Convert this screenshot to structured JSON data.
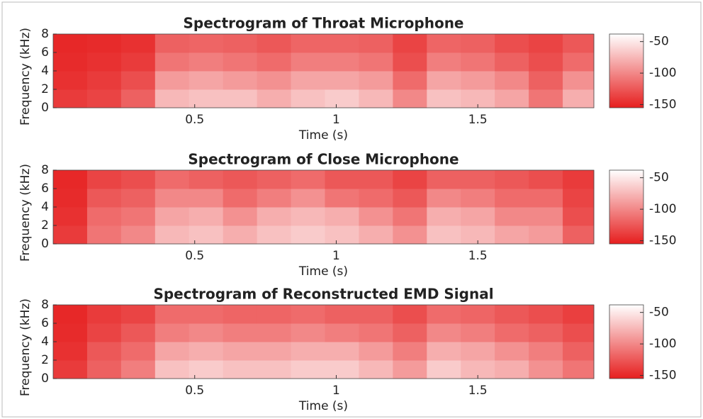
{
  "chart_data": [
    {
      "type": "heatmap",
      "title": "Spectrogram of Throat Microphone",
      "xlabel": "Time (s)",
      "ylabel": "Frequency (kHz)",
      "xlim": [
        0,
        1.91
      ],
      "ylim": [
        0,
        8
      ],
      "xticks": [
        0.5,
        1,
        1.5
      ],
      "yticks": [
        0,
        2,
        4,
        6,
        8
      ],
      "x_edges": [
        0,
        0.12,
        0.24,
        0.36,
        0.48,
        0.6,
        0.72,
        0.84,
        0.96,
        1.08,
        1.2,
        1.32,
        1.44,
        1.56,
        1.68,
        1.8,
        1.91
      ],
      "y_edges": [
        0,
        2,
        4,
        6,
        8
      ],
      "z": [
        [
          -140,
          -135,
          -120,
          -75,
          -70,
          -70,
          -80,
          -70,
          -65,
          -75,
          -100,
          -70,
          -75,
          -85,
          -110,
          -80
        ],
        [
          -145,
          -140,
          -130,
          -90,
          -85,
          -90,
          -95,
          -85,
          -85,
          -90,
          -115,
          -85,
          -90,
          -100,
          -120,
          -95
        ],
        [
          -148,
          -145,
          -140,
          -110,
          -105,
          -110,
          -115,
          -105,
          -105,
          -110,
          -130,
          -105,
          -110,
          -120,
          -130,
          -115
        ],
        [
          -150,
          -148,
          -145,
          -120,
          -118,
          -120,
          -125,
          -118,
          -118,
          -120,
          -135,
          -118,
          -120,
          -130,
          -135,
          -125
        ]
      ],
      "clim": [
        -155,
        -38
      ],
      "cticks": [
        -50,
        -100,
        -150
      ],
      "colormap": [
        "#e61e1e",
        "#ffffff"
      ]
    },
    {
      "type": "heatmap",
      "title": "Spectrogram of Close Microphone",
      "xlabel": "Time (s)",
      "ylabel": "Frequency (kHz)",
      "xlim": [
        0,
        1.91
      ],
      "ylim": [
        0,
        8
      ],
      "xticks": [
        0.5,
        1,
        1.5
      ],
      "yticks": [
        0,
        2,
        4,
        6,
        8
      ],
      "x_edges": [
        0,
        0.12,
        0.24,
        0.36,
        0.48,
        0.6,
        0.72,
        0.84,
        0.96,
        1.08,
        1.2,
        1.32,
        1.44,
        1.56,
        1.68,
        1.8,
        1.91
      ],
      "y_edges": [
        0,
        2,
        4,
        6,
        8
      ],
      "z": [
        [
          -140,
          -110,
          -100,
          -75,
          -70,
          -80,
          -70,
          -65,
          -70,
          -80,
          -95,
          -70,
          -75,
          -85,
          -90,
          -120
        ],
        [
          -145,
          -115,
          -110,
          -85,
          -80,
          -95,
          -80,
          -75,
          -80,
          -95,
          -110,
          -80,
          -85,
          -100,
          -100,
          -130
        ],
        [
          -148,
          -125,
          -120,
          -100,
          -100,
          -115,
          -105,
          -95,
          -110,
          -115,
          -125,
          -100,
          -105,
          -115,
          -115,
          -135
        ],
        [
          -150,
          -135,
          -130,
          -115,
          -120,
          -125,
          -120,
          -115,
          -125,
          -125,
          -135,
          -120,
          -120,
          -125,
          -130,
          -140
        ]
      ],
      "clim": [
        -155,
        -38
      ],
      "cticks": [
        -50,
        -100,
        -150
      ],
      "colormap": [
        "#e61e1e",
        "#ffffff"
      ]
    },
    {
      "type": "heatmap",
      "title": "Spectrogram of Reconstructed EMD Signal",
      "xlabel": "Time (s)",
      "ylabel": "Frequency (kHz)",
      "xlim": [
        0,
        1.91
      ],
      "ylim": [
        0,
        8
      ],
      "xticks": [
        0.5,
        1,
        1.5
      ],
      "yticks": [
        0,
        2,
        4,
        6,
        8
      ],
      "x_edges": [
        0,
        0.12,
        0.24,
        0.36,
        0.48,
        0.6,
        0.72,
        0.84,
        0.96,
        1.08,
        1.2,
        1.32,
        1.44,
        1.56,
        1.68,
        1.8,
        1.91
      ],
      "y_edges": [
        0,
        2,
        4,
        6,
        8
      ],
      "z": [
        [
          -140,
          -120,
          -105,
          -70,
          -65,
          -70,
          -70,
          -65,
          -65,
          -75,
          -90,
          -65,
          -75,
          -80,
          -95,
          -110
        ],
        [
          -145,
          -125,
          -115,
          -85,
          -80,
          -85,
          -85,
          -80,
          -80,
          -90,
          -105,
          -80,
          -85,
          -95,
          -105,
          -120
        ],
        [
          -148,
          -135,
          -125,
          -105,
          -100,
          -105,
          -105,
          -100,
          -105,
          -110,
          -120,
          -100,
          -105,
          -115,
          -120,
          -130
        ],
        [
          -150,
          -140,
          -135,
          -115,
          -115,
          -118,
          -118,
          -115,
          -120,
          -120,
          -130,
          -115,
          -118,
          -125,
          -130,
          -138
        ]
      ],
      "clim": [
        -155,
        -38
      ],
      "cticks": [
        -50,
        -100,
        -150
      ],
      "colormap": [
        "#e61e1e",
        "#ffffff"
      ]
    }
  ]
}
